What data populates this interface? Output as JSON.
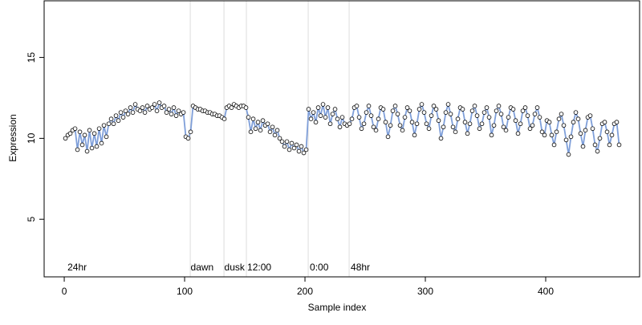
{
  "chart_data": {
    "type": "scatter",
    "xlabel": "Sample index",
    "ylabel": "Expression",
    "xlim": [
      -16.7,
      478
    ],
    "ylim": [
      1.44,
      18.5
    ],
    "xticks": [
      0,
      100,
      200,
      300,
      400
    ],
    "yticks": [
      5,
      10,
      15
    ],
    "line_color": "#7f9fd9",
    "point_color": "#ffffff",
    "vline_color": "#dddddd",
    "annotation_color": "#aaaaaa",
    "vlines": [
      104.7,
      132.7,
      151.3,
      202.7,
      236.7
    ],
    "annotations": [
      {
        "x": 2.7,
        "y": 2.03,
        "text": "24hr"
      },
      {
        "x": 105,
        "y": 2.03,
        "text": "dawn"
      },
      {
        "x": 133,
        "y": 2.03,
        "text": "dusk"
      },
      {
        "x": 152,
        "y": 2.03,
        "text": "12:00"
      },
      {
        "x": 204,
        "y": 2.03,
        "text": "0:00"
      },
      {
        "x": 238,
        "y": 2.03,
        "text": "48hr"
      }
    ],
    "x": [
      1,
      3,
      5,
      7,
      9,
      11,
      13,
      15,
      17,
      19,
      21,
      23,
      25,
      27,
      29,
      31,
      33,
      35,
      37,
      39,
      41,
      43,
      45,
      47,
      49,
      51,
      53,
      55,
      57,
      59,
      61,
      63,
      65,
      67,
      69,
      71,
      73,
      75,
      77,
      79,
      81,
      83,
      85,
      87,
      89,
      91,
      93,
      95,
      97,
      99,
      101,
      103,
      105,
      107,
      109,
      111,
      113,
      115,
      117,
      119,
      121,
      123,
      125,
      127,
      129,
      131,
      133,
      135,
      137,
      139,
      141,
      143,
      145,
      147,
      149,
      151,
      153,
      155,
      157,
      159,
      161,
      163,
      165,
      167,
      169,
      171,
      173,
      175,
      177,
      179,
      181,
      183,
      185,
      187,
      189,
      191,
      193,
      195,
      197,
      199,
      201,
      203,
      205,
      207,
      209,
      211,
      213,
      215,
      217,
      219,
      221,
      223,
      225,
      227,
      229,
      231,
      233,
      235,
      237,
      239,
      241,
      243,
      245,
      247,
      249,
      251,
      253,
      255,
      257,
      259,
      261,
      263,
      265,
      267,
      269,
      271,
      273,
      275,
      277,
      279,
      281,
      283,
      285,
      287,
      289,
      291,
      293,
      295,
      297,
      299,
      301,
      303,
      305,
      307,
      309,
      311,
      313,
      315,
      317,
      319,
      321,
      323,
      325,
      327,
      329,
      331,
      333,
      335,
      337,
      339,
      341,
      343,
      345,
      347,
      349,
      351,
      353,
      355,
      357,
      359,
      361,
      363,
      365,
      367,
      369,
      371,
      373,
      375,
      377,
      379,
      381,
      383,
      385,
      387,
      389,
      391,
      393,
      395,
      397,
      399,
      401,
      403,
      405,
      407,
      409,
      411,
      413,
      415,
      417,
      419,
      421,
      423,
      425,
      427,
      429,
      431,
      433,
      435,
      437,
      439,
      441,
      443,
      445,
      447,
      449,
      451,
      453,
      455,
      457,
      459,
      461
    ],
    "values": [
      10.0,
      10.2,
      10.3,
      10.5,
      10.6,
      9.3,
      10.4,
      9.6,
      10.2,
      9.2,
      10.5,
      9.4,
      10.3,
      9.5,
      10.6,
      9.7,
      10.8,
      10.1,
      10.9,
      11.2,
      10.9,
      11.4,
      11.1,
      11.6,
      11.3,
      11.7,
      11.5,
      11.9,
      11.6,
      12.1,
      11.8,
      11.7,
      11.9,
      11.6,
      12.0,
      11.8,
      11.9,
      12.1,
      11.7,
      12.2,
      11.9,
      12.0,
      11.6,
      11.8,
      11.5,
      11.9,
      11.4,
      11.7,
      11.5,
      11.6,
      10.1,
      10.0,
      10.4,
      12.0,
      11.9,
      11.8,
      11.8,
      11.7,
      11.7,
      11.6,
      11.6,
      11.5,
      11.5,
      11.4,
      11.4,
      11.3,
      11.2,
      11.9,
      12.0,
      11.9,
      12.1,
      12.0,
      11.9,
      12.0,
      12.0,
      11.9,
      11.3,
      10.4,
      11.2,
      10.6,
      11.0,
      10.5,
      11.1,
      10.8,
      10.9,
      10.4,
      10.7,
      10.2,
      10.5,
      10.0,
      9.8,
      9.5,
      9.8,
      9.3,
      9.7,
      9.4,
      9.6,
      9.2,
      9.5,
      9.1,
      9.3,
      11.8,
      11.2,
      11.6,
      11.0,
      11.9,
      11.4,
      12.1,
      11.3,
      11.9,
      10.9,
      11.5,
      11.8,
      11.2,
      10.7,
      11.3,
      10.9,
      10.8,
      10.9,
      11.2,
      11.9,
      12.0,
      11.3,
      10.6,
      10.9,
      11.6,
      12.0,
      11.4,
      10.7,
      10.5,
      11.2,
      11.9,
      11.8,
      11.0,
      10.1,
      10.8,
      11.7,
      12.0,
      11.5,
      10.8,
      10.5,
      11.3,
      11.9,
      11.7,
      11.0,
      10.2,
      10.9,
      11.8,
      12.1,
      11.6,
      10.9,
      10.6,
      11.4,
      12.0,
      11.8,
      11.1,
      10.0,
      10.7,
      11.6,
      12.1,
      11.5,
      10.7,
      10.4,
      11.2,
      11.9,
      11.8,
      11.0,
      10.3,
      10.9,
      11.7,
      12.0,
      11.4,
      10.6,
      10.9,
      11.6,
      11.9,
      11.3,
      10.2,
      10.8,
      11.7,
      12.0,
      11.5,
      10.7,
      10.5,
      11.3,
      11.9,
      11.8,
      11.1,
      10.3,
      10.9,
      11.7,
      11.9,
      11.4,
      10.6,
      10.8,
      11.5,
      11.9,
      11.3,
      10.4,
      10.2,
      11.1,
      11.0,
      10.2,
      9.6,
      10.4,
      11.2,
      11.5,
      10.8,
      9.9,
      9.0,
      10.1,
      11.0,
      11.6,
      11.2,
      10.3,
      9.5,
      10.5,
      11.3,
      11.4,
      10.6,
      9.6,
      9.2,
      10.0,
      10.9,
      11.0,
      10.4,
      9.6,
      10.2,
      10.9,
      11.0,
      9.6
    ]
  }
}
